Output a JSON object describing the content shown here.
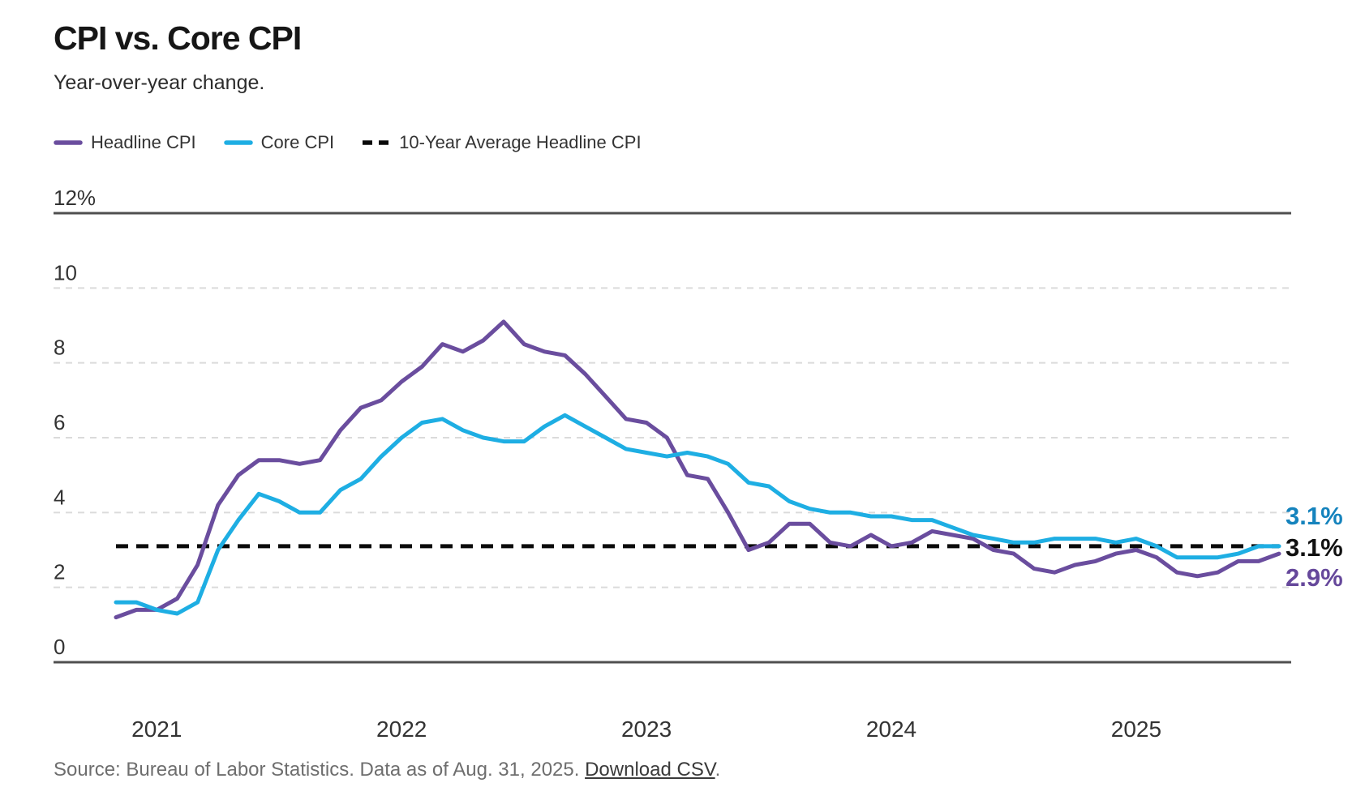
{
  "title": "CPI vs. Core CPI",
  "subtitle": "Year-over-year change.",
  "legend": [
    {
      "label": "Headline CPI",
      "color": "#6A4D9E",
      "style": "solid"
    },
    {
      "label": "Core CPI",
      "color": "#1EAEE3",
      "style": "solid"
    },
    {
      "label": "10-Year Average Headline CPI",
      "color": "#0A0A0A",
      "style": "dashed"
    }
  ],
  "source": {
    "prefix": "Source: Bureau of Labor Statistics. Data as of Aug. 31, 2025. ",
    "link_label": "Download CSV",
    "suffix": "."
  },
  "chart_data": {
    "type": "line",
    "frequency": "monthly",
    "x_start_month": "Nov 2020",
    "x_end_month": "Aug 2025",
    "ylim": [
      0,
      12
    ],
    "grid": "horizontal dashed",
    "legend_position": "top-left",
    "colors": {
      "grid": "#DBDBDB",
      "axis": "#4F4F4F",
      "text": "#333333"
    },
    "y_ticks": [
      {
        "value": 12,
        "label": "12%",
        "solid": true
      },
      {
        "value": 10,
        "label": "10",
        "solid": false
      },
      {
        "value": 8,
        "label": "8",
        "solid": false
      },
      {
        "value": 6,
        "label": "6",
        "solid": false
      },
      {
        "value": 4,
        "label": "4",
        "solid": false
      },
      {
        "value": 2,
        "label": "2",
        "solid": false
      },
      {
        "value": 0,
        "label": "0",
        "solid": true
      }
    ],
    "x_ticks": [
      {
        "label": "2021",
        "month_index": 2
      },
      {
        "label": "2022",
        "month_index": 14
      },
      {
        "label": "2023",
        "month_index": 26
      },
      {
        "label": "2024",
        "month_index": 38
      },
      {
        "label": "2025",
        "month_index": 50
      }
    ],
    "average_line": {
      "label": "10-Year Average Headline CPI",
      "value": 3.1,
      "color": "#0A0A0A",
      "label_color": "#111111",
      "end_label": "3.1%"
    },
    "series": [
      {
        "name": "Headline CPI",
        "color": "#6A4D9E",
        "label_color": "#66489B",
        "end_label": "2.9%",
        "values": [
          1.2,
          1.4,
          1.4,
          1.7,
          2.6,
          4.2,
          5.0,
          5.4,
          5.4,
          5.3,
          5.4,
          6.2,
          6.8,
          7.0,
          7.5,
          7.9,
          8.5,
          8.3,
          8.6,
          9.1,
          8.5,
          8.3,
          8.2,
          7.7,
          7.1,
          6.5,
          6.4,
          6.0,
          5.0,
          4.9,
          4.0,
          3.0,
          3.2,
          3.7,
          3.7,
          3.2,
          3.1,
          3.4,
          3.1,
          3.2,
          3.5,
          3.4,
          3.3,
          3.0,
          2.9,
          2.5,
          2.4,
          2.6,
          2.7,
          2.9,
          3.0,
          2.8,
          2.4,
          2.3,
          2.4,
          2.7,
          2.7,
          2.9
        ]
      },
      {
        "name": "Core CPI",
        "color": "#1EAEE3",
        "label_color": "#1583BD",
        "end_label": "3.1%",
        "values": [
          1.6,
          1.6,
          1.4,
          1.3,
          1.6,
          3.0,
          3.8,
          4.5,
          4.3,
          4.0,
          4.0,
          4.6,
          4.9,
          5.5,
          6.0,
          6.4,
          6.5,
          6.2,
          6.0,
          5.9,
          5.9,
          6.3,
          6.6,
          6.3,
          6.0,
          5.7,
          5.6,
          5.5,
          5.6,
          5.5,
          5.3,
          4.8,
          4.7,
          4.3,
          4.1,
          4.0,
          4.0,
          3.9,
          3.9,
          3.8,
          3.8,
          3.6,
          3.4,
          3.3,
          3.2,
          3.2,
          3.3,
          3.3,
          3.3,
          3.2,
          3.3,
          3.1,
          2.8,
          2.8,
          2.8,
          2.9,
          3.1,
          3.1
        ]
      }
    ]
  }
}
